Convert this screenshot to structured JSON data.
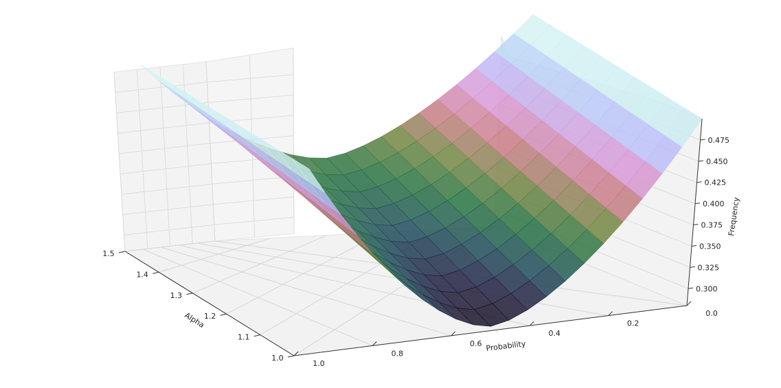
{
  "chart_data": {
    "type": "surface",
    "title": "",
    "xlabel": "Alpha",
    "ylabel": "Probability",
    "zlabel": "Frequency",
    "x_ticks": [
      "1.0",
      "1.1",
      "1.2",
      "1.3",
      "1.4",
      "1.5"
    ],
    "y_ticks": [
      "1.0",
      "0.8",
      "0.6",
      "0.4",
      "0.2",
      "0.0"
    ],
    "z_ticks": [
      "0.300",
      "0.325",
      "0.350",
      "0.375",
      "0.400",
      "0.425",
      "0.450",
      "0.475"
    ],
    "xlim": [
      1.0,
      1.5
    ],
    "ylim": [
      0.0,
      1.0
    ],
    "zlim": [
      0.28,
      0.5
    ],
    "grid": true,
    "colormap": "cubehelix",
    "surface": {
      "alpha": [
        1.0,
        1.1,
        1.2,
        1.3,
        1.4,
        1.5
      ],
      "probability": [
        0.0,
        0.1,
        0.2,
        0.3,
        0.4,
        0.5,
        0.6,
        0.7,
        0.8,
        0.9,
        1.0
      ],
      "minimum_frequency": 0.285,
      "minimum_location": {
        "alpha": 1.0,
        "probability": 0.5
      },
      "maximum_frequency": 0.5
    }
  }
}
